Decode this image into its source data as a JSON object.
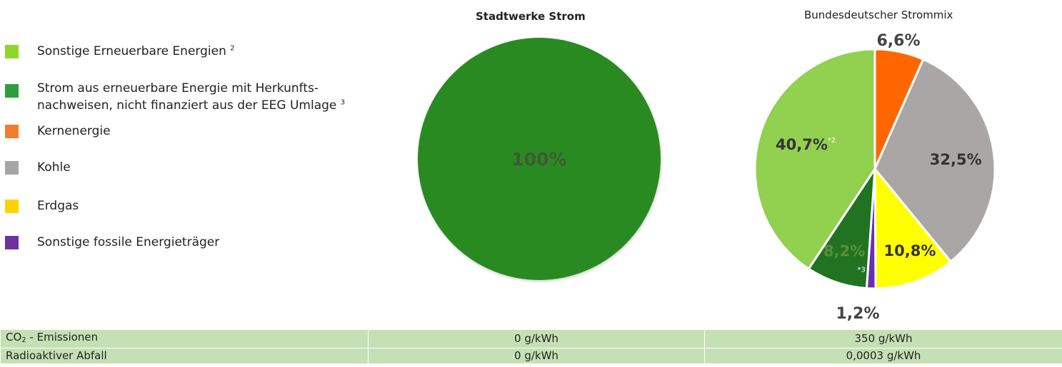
{
  "legend": [
    {
      "label": "Sonstige Erneuerbare Energien",
      "note": "2",
      "color": "#8fd62a"
    },
    {
      "label": "Strom aus erneuerbare Energie mit Herkunfts-",
      "label2": "nachweisen, nicht finanziert aus der EEG Umlage",
      "note": "3",
      "color": "#2e9e3a"
    },
    {
      "label": "Kernenergie",
      "note": "",
      "color": "#ef7d31"
    },
    {
      "label": "Kohle",
      "note": "",
      "color": "#a6a6a6"
    },
    {
      "label": "Erdgas",
      "note": "",
      "color": "#ffd200"
    },
    {
      "label": "Sonstige fossile Energieträger",
      "note": "",
      "color": "#7030a0"
    }
  ],
  "chart_data": [
    {
      "type": "pie",
      "title": "Stadtwerke Strom",
      "slices": [
        {
          "name": "Strom aus erneuerbare Energie mit Herkunftsnachweisen, nicht finanziert aus der EEG Umlage",
          "value": 100,
          "label": "100%",
          "color": "#2a8a24"
        }
      ]
    },
    {
      "type": "pie",
      "title": "Bundesdeutscher Strommix",
      "slices": [
        {
          "name": "Kernenergie",
          "value": 6.6,
          "label": "6,6%",
          "color": "#ff6600"
        },
        {
          "name": "Kohle",
          "value": 32.5,
          "label": "32,5%",
          "color": "#aaa6a6"
        },
        {
          "name": "Erdgas",
          "value": 10.8,
          "label": "10,8%",
          "color": "#ffff00"
        },
        {
          "name": "Sonstige fossile Energieträger",
          "value": 1.2,
          "label": "1,2%",
          "color": "#6a2fb0"
        },
        {
          "name": "Strom aus erneuerbare Energie mit Herkunftsnachweisen",
          "value": 8.2,
          "label": "8,2%",
          "note": "*3",
          "color": "#217321"
        },
        {
          "name": "Sonstige Erneuerbare Energien",
          "value": 40.7,
          "label": "40,7%",
          "note": "*2",
          "color": "#92d050"
        }
      ]
    }
  ],
  "table": {
    "rows": [
      {
        "label": "CO",
        "sub": "2",
        "label_rest": " - Emissionen",
        "stadtwerke": "0 g/kWh",
        "bund": "350 g/kWh"
      },
      {
        "label": "Radioaktiver Abfall",
        "sub": "",
        "label_rest": "",
        "stadtwerke": "0 g/kWh",
        "bund": "0,0003 g/kWh"
      }
    ]
  }
}
